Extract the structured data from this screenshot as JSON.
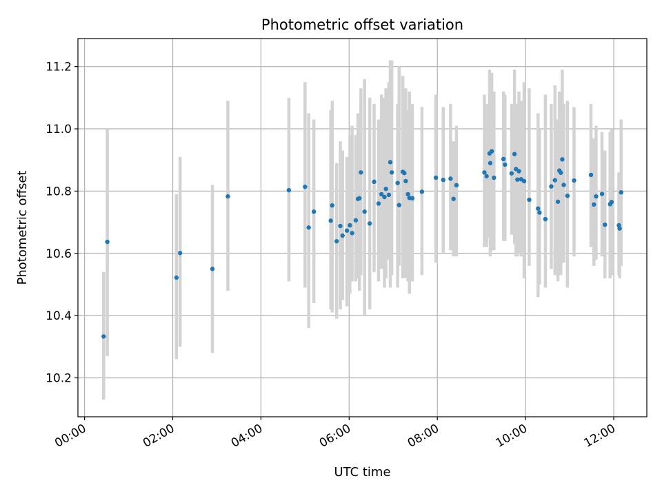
{
  "chart_data": {
    "type": "scatter",
    "title": "Photometric offset variation",
    "xlabel": "UTC time",
    "ylabel": "Photometric offset",
    "xlim_hours": [
      -0.15,
      12.75
    ],
    "ylim": [
      10.075,
      11.29
    ],
    "x_ticks": [
      {
        "value": 0,
        "label": "00:00"
      },
      {
        "value": 2,
        "label": "02:00"
      },
      {
        "value": 4,
        "label": "04:00"
      },
      {
        "value": 6,
        "label": "06:00"
      },
      {
        "value": 8,
        "label": "08:00"
      },
      {
        "value": 10,
        "label": "10:00"
      },
      {
        "value": 12,
        "label": "12:00"
      }
    ],
    "y_ticks": [
      {
        "value": 10.2,
        "label": "10.2"
      },
      {
        "value": 10.4,
        "label": "10.4"
      },
      {
        "value": 10.6,
        "label": "10.6"
      },
      {
        "value": 10.8,
        "label": "10.8"
      },
      {
        "value": 11.0,
        "label": "11.0"
      },
      {
        "value": 11.2,
        "label": "11.2"
      }
    ],
    "grid": true,
    "point_color": "#1f77b4",
    "errorbar_color": "#d3d3d3",
    "series": [
      {
        "x_time": [
          "00:26",
          "00:31",
          "02:05",
          "02:10",
          "02:54",
          "03:15",
          "04:38",
          "05:00",
          "05:05",
          "05:12",
          "05:35",
          "05:37",
          "05:43",
          "05:48",
          "05:51",
          "05:57",
          "06:01",
          "06:04",
          "06:09",
          "06:12",
          "06:14",
          "06:16",
          "06:21",
          "06:28",
          "06:34",
          "06:40",
          "06:44",
          "06:48",
          "06:50",
          "06:54",
          "06:56",
          "06:58",
          "07:06",
          "07:08",
          "07:13",
          "07:15",
          "07:17",
          "07:20",
          "07:22",
          "07:26",
          "07:39",
          "07:58",
          "08:08",
          "08:18",
          "08:22",
          "08:26",
          "09:04",
          "09:07",
          "09:11",
          "09:12",
          "09:14",
          "09:17",
          "09:30",
          "09:32",
          "09:41",
          "09:45",
          "09:47",
          "09:49",
          "09:51",
          "09:54",
          "09:58",
          "10:05",
          "10:17",
          "10:19",
          "10:27",
          "10:35",
          "10:40",
          "10:44",
          "10:46",
          "10:48",
          "10:50",
          "10:52",
          "10:57",
          "11:06",
          "11:29",
          "11:33",
          "11:36",
          "11:44",
          "11:48",
          "11:55",
          "11:57",
          "12:07",
          "12:08",
          "12:10"
        ],
        "y": [
          10.333,
          10.637,
          10.522,
          10.601,
          10.55,
          10.783,
          10.803,
          10.814,
          10.683,
          10.734,
          10.705,
          10.754,
          10.639,
          10.688,
          10.657,
          10.673,
          10.69,
          10.665,
          10.706,
          10.775,
          10.777,
          10.86,
          10.734,
          10.696,
          10.83,
          10.76,
          10.79,
          10.781,
          10.807,
          10.788,
          10.893,
          10.86,
          10.826,
          10.755,
          10.862,
          10.858,
          10.832,
          10.79,
          10.778,
          10.777,
          10.798,
          10.843,
          10.836,
          10.84,
          10.775,
          10.819,
          10.86,
          10.848,
          10.921,
          10.89,
          10.928,
          10.843,
          10.903,
          10.885,
          10.857,
          10.919,
          10.871,
          10.837,
          10.864,
          10.838,
          10.832,
          10.772,
          10.744,
          10.731,
          10.71,
          10.815,
          10.835,
          10.766,
          10.866,
          10.859,
          10.902,
          10.82,
          10.785,
          10.834,
          10.852,
          10.757,
          10.783,
          10.791,
          10.692,
          10.758,
          10.765,
          10.69,
          10.68,
          10.796
        ],
        "yerr_low": [
          10.13,
          10.27,
          10.26,
          10.3,
          10.28,
          10.48,
          10.51,
          10.49,
          10.36,
          10.44,
          10.42,
          10.41,
          10.39,
          10.42,
          10.45,
          10.43,
          10.47,
          10.51,
          10.51,
          10.52,
          10.48,
          10.53,
          10.4,
          10.42,
          10.54,
          10.51,
          10.55,
          10.49,
          10.52,
          10.58,
          10.49,
          10.53,
          10.49,
          10.56,
          10.52,
          10.52,
          10.52,
          10.51,
          10.47,
          10.51,
          10.53,
          10.57,
          10.6,
          10.61,
          10.59,
          10.59,
          10.62,
          10.62,
          10.65,
          10.59,
          10.61,
          10.61,
          10.64,
          10.64,
          10.66,
          10.63,
          10.59,
          10.59,
          10.6,
          10.59,
          10.52,
          10.56,
          10.46,
          10.5,
          10.49,
          10.55,
          10.53,
          10.51,
          10.54,
          10.53,
          10.6,
          10.57,
          10.49,
          10.59,
          10.62,
          10.56,
          10.58,
          10.59,
          10.52,
          10.52,
          10.53,
          10.53,
          10.52,
          10.56
        ],
        "yerr_high": [
          10.54,
          11.0,
          10.79,
          10.91,
          10.82,
          11.09,
          11.1,
          11.15,
          11.05,
          11.03,
          11.06,
          11.09,
          10.89,
          10.96,
          10.93,
          10.91,
          10.98,
          11.01,
          10.98,
          11.05,
          11.04,
          11.13,
          11.16,
          11.1,
          11.08,
          11.03,
          11.11,
          11.1,
          11.13,
          11.15,
          11.22,
          11.22,
          11.08,
          11.2,
          11.17,
          11.07,
          11.13,
          11.06,
          11.12,
          11.08,
          11.07,
          11.11,
          11.07,
          11.08,
          10.96,
          11.01,
          11.11,
          11.08,
          11.19,
          11.15,
          11.18,
          11.12,
          11.12,
          11.11,
          11.08,
          11.19,
          11.08,
          11.07,
          11.12,
          11.09,
          11.15,
          11.13,
          11.05,
          11.0,
          11.11,
          11.08,
          11.14,
          11.03,
          11.12,
          11.11,
          11.19,
          11.08,
          11.09,
          11.07,
          11.08,
          10.97,
          11.01,
          10.99,
          10.93,
          10.99,
          11.0,
          10.86,
          10.82,
          11.03
        ]
      }
    ]
  }
}
